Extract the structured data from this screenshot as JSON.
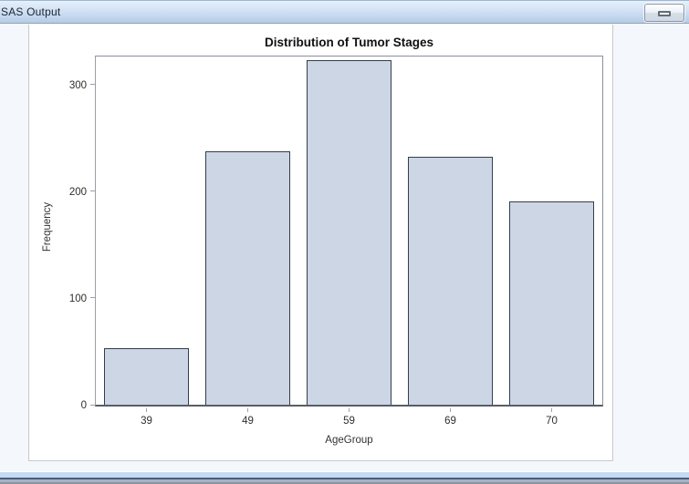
{
  "window": {
    "title": "SAS Output",
    "controls": [
      {
        "name": "restore-button",
        "icon": "restore-window-icon"
      }
    ]
  },
  "chart_data": {
    "type": "bar",
    "title": "Distribution of Tumor Stages",
    "xlabel": "AgeGroup",
    "ylabel": "Frequency",
    "categories": [
      "39",
      "49",
      "59",
      "69",
      "70"
    ],
    "values": [
      53,
      237,
      323,
      232,
      190
    ],
    "ylim": [
      0,
      327
    ],
    "yticks": [
      0,
      100,
      200,
      300
    ],
    "grid": false,
    "legend": false,
    "bar_fill": "#cdd6e4",
    "bar_border": "#333e48"
  },
  "colors": {
    "titlebar_top": "#e7f0fa",
    "titlebar_bottom": "#b5cce6",
    "background": "#f4f8fd",
    "figure_background": "#ffffff",
    "axis_line": "#565e68"
  }
}
